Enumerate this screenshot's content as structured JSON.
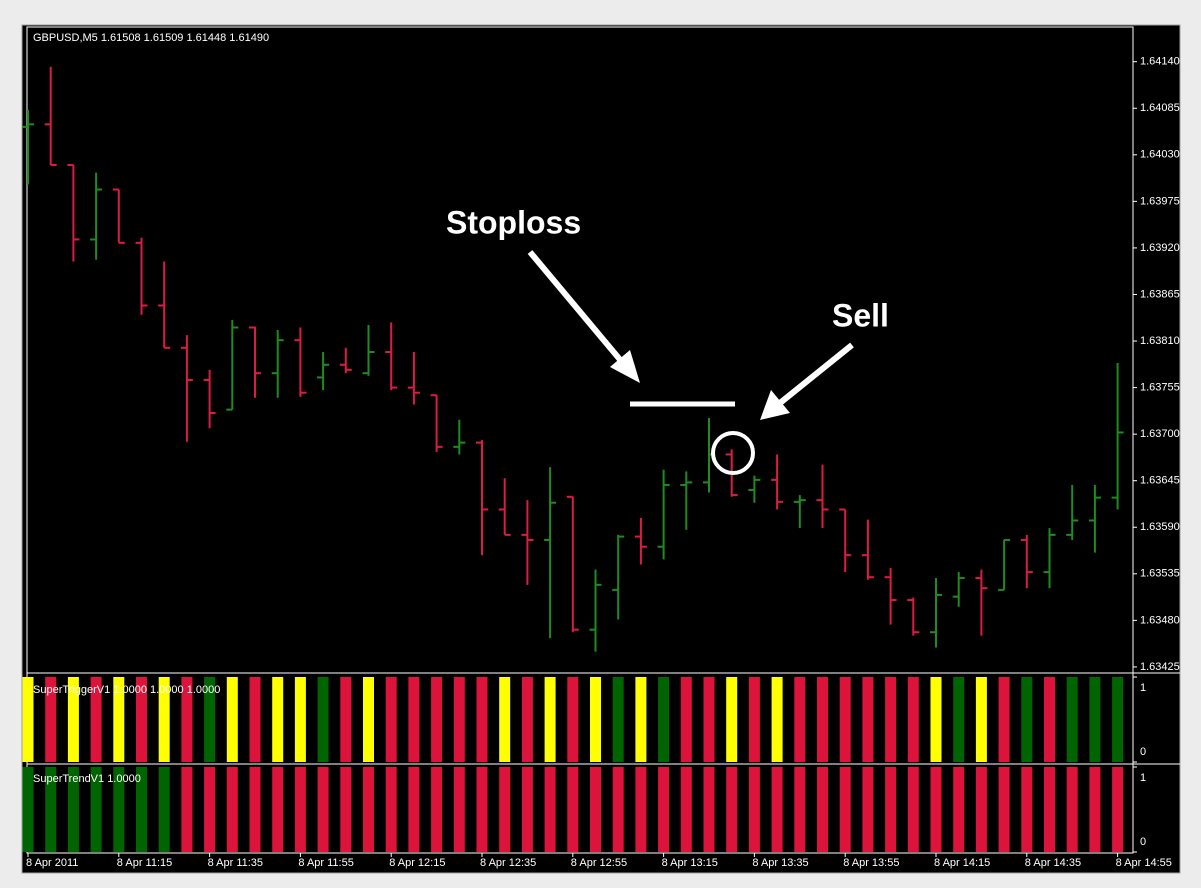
{
  "chart_data": [
    {
      "type": "ohlc",
      "title": "GBPUSD,M5  1.61508 1.61509 1.61448 1.61490",
      "annotations": [
        "Stoploss",
        "Sell"
      ],
      "categories": [
        "8 Apr 2011",
        null,
        null,
        null,
        "8 Apr 11:15",
        null,
        null,
        null,
        "8 Apr 11:35",
        null,
        null,
        null,
        "8 Apr 11:55",
        null,
        null,
        null,
        "8 Apr 12:15",
        null,
        null,
        null,
        "8 Apr 12:35",
        null,
        null,
        null,
        "8 Apr 12:55",
        null,
        null,
        null,
        "8 Apr 13:15",
        null,
        null,
        null,
        "8 Apr 13:35",
        null,
        null,
        null,
        "8 Apr 13:55",
        null,
        null,
        null,
        "8 Apr 14:15",
        null,
        null,
        null,
        "8 Apr 14:35",
        null,
        null,
        null,
        "8 Apr 14:55"
      ],
      "open": [
        1.64063,
        1.64066,
        1.64018,
        1.6393,
        1.63989,
        1.63926,
        1.63852,
        1.63802,
        1.63764,
        1.63729,
        1.63826,
        1.63772,
        1.63811,
        1.63767,
        1.63782,
        1.63772,
        1.63797,
        1.63755,
        1.63746,
        1.63685,
        1.6369,
        1.63611,
        1.63581,
        1.63575,
        1.63626,
        1.63469,
        1.63516,
        1.63579,
        1.63567,
        1.6364,
        1.63643,
        1.63676,
        1.63634,
        1.63646,
        1.6362,
        1.63622,
        1.63611,
        1.63557,
        1.63531,
        1.63504,
        1.63466,
        1.63508,
        1.6353,
        1.63516,
        1.63575,
        1.63537,
        1.63581,
        1.63598,
        1.63625
      ],
      "high": [
        1.64083,
        1.64134,
        1.64018,
        1.64009,
        1.63989,
        1.63932,
        1.63904,
        1.63817,
        1.63776,
        1.63835,
        1.63827,
        1.63823,
        1.63826,
        1.63797,
        1.63802,
        1.63829,
        1.63832,
        1.63797,
        1.63746,
        1.63717,
        1.63693,
        1.63648,
        1.63622,
        1.63661,
        1.63626,
        1.6354,
        1.63581,
        1.63601,
        1.63658,
        1.63656,
        1.63719,
        1.63682,
        1.63651,
        1.63676,
        1.63628,
        1.63664,
        1.63611,
        1.63599,
        1.63542,
        1.63507,
        1.6353,
        1.63537,
        1.6354,
        1.63575,
        1.63581,
        1.63589,
        1.6364,
        1.6364,
        1.63784
      ],
      "low": [
        1.63995,
        1.64018,
        1.63904,
        1.63906,
        1.63926,
        1.63841,
        1.63802,
        1.63691,
        1.63707,
        1.63729,
        1.63743,
        1.63743,
        1.63744,
        1.63752,
        1.63772,
        1.63769,
        1.63752,
        1.63735,
        1.63679,
        1.63676,
        1.63557,
        1.63581,
        1.63522,
        1.63459,
        1.63466,
        1.63443,
        1.63481,
        1.63546,
        1.63552,
        1.63587,
        1.63631,
        1.63626,
        1.63619,
        1.63611,
        1.63589,
        1.63589,
        1.63537,
        1.63528,
        1.63475,
        1.63462,
        1.63448,
        1.63496,
        1.63462,
        1.63516,
        1.63518,
        1.63518,
        1.63575,
        1.6356,
        1.63611
      ],
      "close": [
        1.64066,
        1.64018,
        1.6393,
        1.63989,
        1.63926,
        1.63852,
        1.63802,
        1.63764,
        1.63725,
        1.63826,
        1.63772,
        1.63811,
        1.63749,
        1.63782,
        1.63776,
        1.63797,
        1.63755,
        1.63749,
        1.63685,
        1.6369,
        1.63611,
        1.63581,
        1.63575,
        1.63619,
        1.63469,
        1.63522,
        1.63579,
        1.63567,
        1.6364,
        1.63643,
        1.63676,
        1.63628,
        1.63646,
        1.6362,
        1.63622,
        1.63611,
        1.63557,
        1.63531,
        1.63504,
        1.63466,
        1.6351,
        1.6353,
        1.63518,
        1.63575,
        1.63537,
        1.63581,
        1.63598,
        1.63625,
        1.63702
      ],
      "up_color": "#1e8c1e",
      "down_color": "#dc1c44",
      "ylim": [
        1.63419,
        1.64181
      ],
      "yticks": [
        {
          "value": 1.6414,
          "label": "1.64140"
        },
        {
          "value": 1.64085,
          "label": "1.64085"
        },
        {
          "value": 1.6403,
          "label": "1.64030"
        },
        {
          "value": 1.63975,
          "label": "1.63975"
        },
        {
          "value": 1.6392,
          "label": "1.63920"
        },
        {
          "value": 1.63865,
          "label": "1.63865"
        },
        {
          "value": 1.6381,
          "label": "1.63810"
        },
        {
          "value": 1.63755,
          "label": "1.63755"
        },
        {
          "value": 1.637,
          "label": "1.63700"
        },
        {
          "value": 1.63645,
          "label": "1.63645"
        },
        {
          "value": 1.6359,
          "label": "1.63590"
        },
        {
          "value": 1.63535,
          "label": "1.63535"
        },
        {
          "value": 1.6348,
          "label": "1.63480"
        },
        {
          "value": 1.63425,
          "label": "1.63425"
        }
      ]
    },
    {
      "type": "bar",
      "title": "SuperTriggerV1 1.0000 1.0000 1.0000",
      "values": [
        1,
        1,
        1,
        1,
        1,
        1,
        1,
        1,
        1,
        1,
        1,
        1,
        1,
        1,
        1,
        1,
        1,
        1,
        1,
        1,
        1,
        1,
        1,
        1,
        1,
        1,
        1,
        1,
        1,
        1,
        1,
        1,
        1,
        1,
        1,
        1,
        1,
        1,
        1,
        1,
        1,
        1,
        1,
        1,
        1,
        1,
        1,
        1,
        1
      ],
      "colors": [
        "#ffff00",
        "#dc143c",
        "#ffff00",
        "#dc143c",
        "#ffff00",
        "#dc143c",
        "#ffff00",
        "#dc143c",
        "#006400",
        "#ffff00",
        "#dc143c",
        "#ffff00",
        "#ffff00",
        "#006400",
        "#dc143c",
        "#ffff00",
        "#dc143c",
        "#dc143c",
        "#dc143c",
        "#dc143c",
        "#dc143c",
        "#ffff00",
        "#dc143c",
        "#ffff00",
        "#dc143c",
        "#ffff00",
        "#006400",
        "#ffff00",
        "#006400",
        "#dc143c",
        "#dc143c",
        "#ffff00",
        "#dc143c",
        "#ffff00",
        "#dc143c",
        "#dc143c",
        "#dc143c",
        "#dc143c",
        "#dc143c",
        "#dc143c",
        "#ffff00",
        "#006400",
        "#ffff00",
        "#dc143c",
        "#006400",
        "#dc143c",
        "#006400",
        "#006400",
        "#006400"
      ],
      "ylim": [
        0,
        1
      ],
      "yticks": [
        0,
        1
      ]
    },
    {
      "type": "bar",
      "title": "SuperTrendV1 1.0000",
      "values": [
        1,
        1,
        1,
        1,
        1,
        1,
        1,
        1,
        1,
        1,
        1,
        1,
        1,
        1,
        1,
        1,
        1,
        1,
        1,
        1,
        1,
        1,
        1,
        1,
        1,
        1,
        1,
        1,
        1,
        1,
        1,
        1,
        1,
        1,
        1,
        1,
        1,
        1,
        1,
        1,
        1,
        1,
        1,
        1,
        1,
        1,
        1,
        1,
        1
      ],
      "colors": [
        "#006400",
        "#006400",
        "#006400",
        "#006400",
        "#006400",
        "#006400",
        "#006400",
        "#dc143c",
        "#dc143c",
        "#dc143c",
        "#dc143c",
        "#dc143c",
        "#dc143c",
        "#dc143c",
        "#dc143c",
        "#dc143c",
        "#dc143c",
        "#dc143c",
        "#dc143c",
        "#dc143c",
        "#dc143c",
        "#dc143c",
        "#dc143c",
        "#dc143c",
        "#dc143c",
        "#dc143c",
        "#dc143c",
        "#dc143c",
        "#dc143c",
        "#dc143c",
        "#dc143c",
        "#dc143c",
        "#dc143c",
        "#dc143c",
        "#dc143c",
        "#dc143c",
        "#dc143c",
        "#dc143c",
        "#dc143c",
        "#dc143c",
        "#dc143c",
        "#dc143c",
        "#dc143c",
        "#dc143c",
        "#dc143c",
        "#dc143c",
        "#dc143c",
        "#dc143c",
        "#dc143c"
      ],
      "ylim": [
        0,
        1
      ],
      "yticks": [
        0,
        1
      ]
    }
  ]
}
